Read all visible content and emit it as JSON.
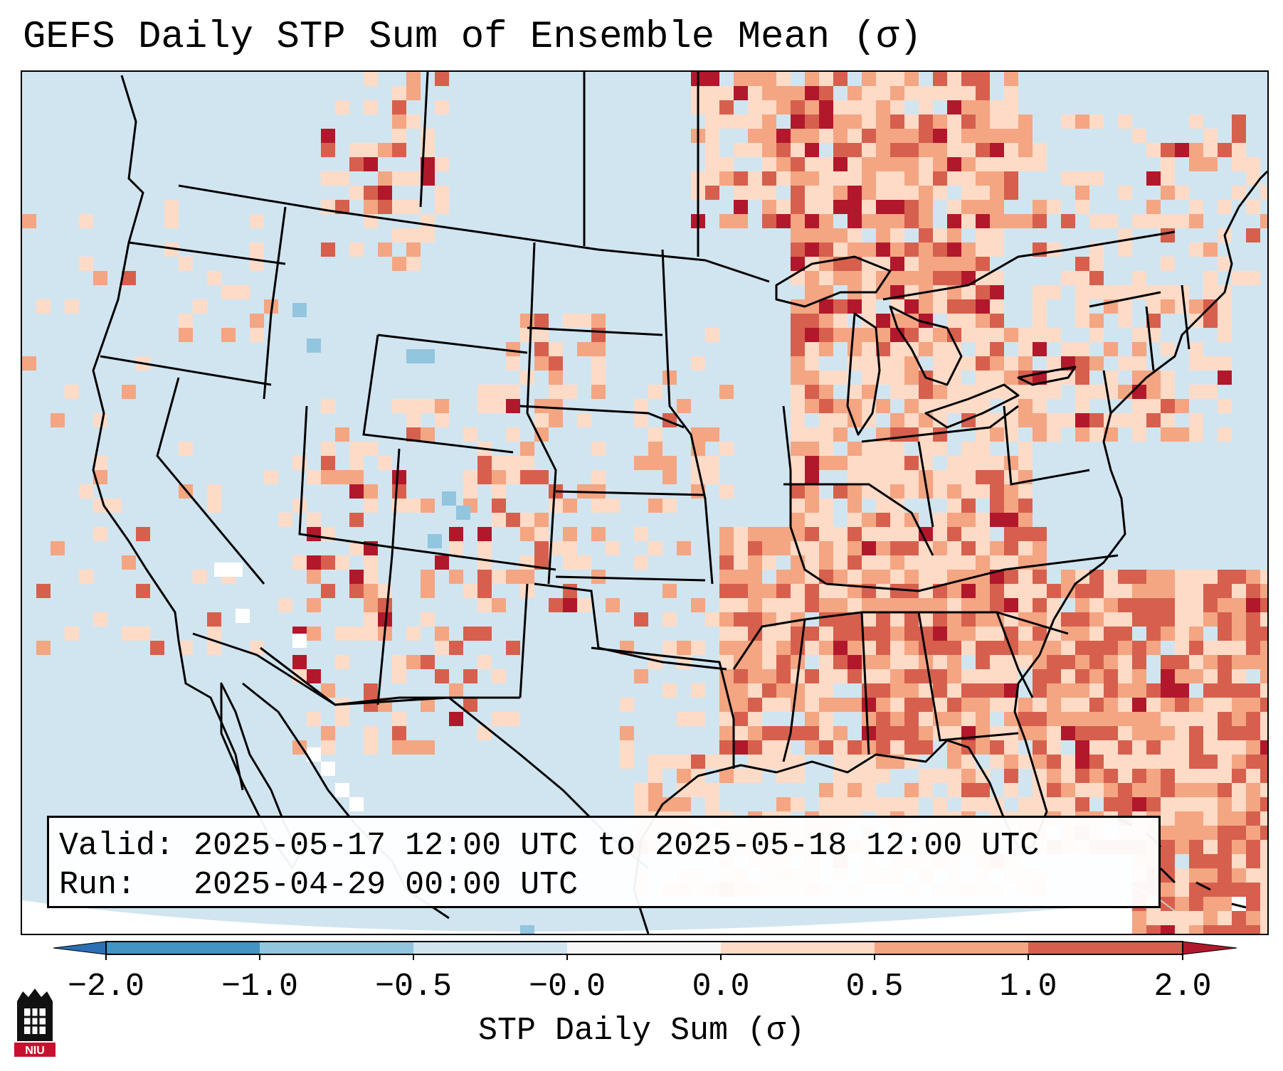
{
  "title": "GEFS Daily STP Sum of Ensemble Mean (σ)",
  "info": {
    "valid_label": "Valid:",
    "valid_value": "2025-05-17 12:00 UTC to 2025-05-18 12:00 UTC",
    "run_label": "Run:",
    "run_value": "2025-04-29 00:00 UTC"
  },
  "colorbar": {
    "label": "STP Daily Sum (σ)",
    "ticks": [
      "−2.0",
      "−1.0",
      "−0.5",
      "−0.0",
      "0.0",
      "0.5",
      "1.0",
      "2.0"
    ],
    "bins": [
      {
        "color": "#2b6fb4"
      },
      {
        "color": "#4393c3"
      },
      {
        "color": "#92c5de"
      },
      {
        "color": "#d1e5f0"
      },
      {
        "color": "#f7f7f7"
      },
      {
        "color": "#fddbc7"
      },
      {
        "color": "#f4a582"
      },
      {
        "color": "#d6604d"
      },
      {
        "color": "#b2182b"
      }
    ]
  },
  "map": {
    "ocean_color": "#d1e5f0",
    "land_color": "#d1e5f0",
    "border_color": "#000000"
  },
  "logo_text": "NIU"
}
